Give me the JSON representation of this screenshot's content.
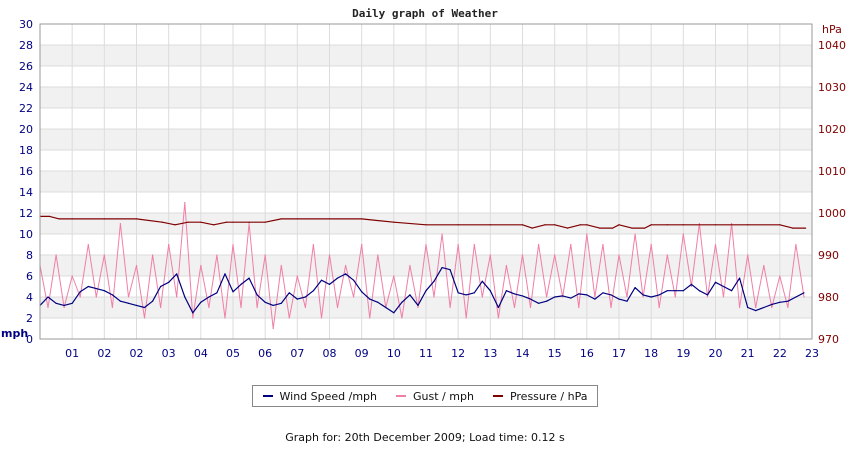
{
  "chart_data": {
    "type": "line",
    "title": "Daily graph of Weather",
    "x_tick_labels": [
      "01",
      "02",
      "02",
      "03",
      "04",
      "05",
      "06",
      "07",
      "08",
      "09",
      "10",
      "11",
      "12",
      "13",
      "14",
      "15",
      "16",
      "17",
      "18",
      "19",
      "20",
      "21",
      "22",
      "23"
    ],
    "x_range_hours": [
      0,
      24
    ],
    "left_axis": {
      "unit": "mph",
      "ylim": [
        0,
        30
      ],
      "ticks": [
        0,
        2,
        4,
        6,
        8,
        10,
        12,
        14,
        16,
        18,
        20,
        22,
        24,
        26,
        28,
        30
      ],
      "color": "#000080"
    },
    "right_axis": {
      "unit": "hPa",
      "ylim": [
        970,
        1045
      ],
      "ticks": [
        970,
        980,
        990,
        1000,
        1010,
        1020,
        1030,
        1040
      ],
      "color": "#800000"
    },
    "grid": true,
    "legend_position": "bottom-center",
    "series": [
      {
        "name": "Wind Speed /mph",
        "axis": "left",
        "color": "#000080",
        "x": [
          0.0,
          0.25,
          0.5,
          0.75,
          1.0,
          1.25,
          1.5,
          1.75,
          2.0,
          2.25,
          2.5,
          2.75,
          3.0,
          3.25,
          3.5,
          3.75,
          4.0,
          4.25,
          4.5,
          4.75,
          5.0,
          5.25,
          5.5,
          5.75,
          6.0,
          6.25,
          6.5,
          6.75,
          7.0,
          7.25,
          7.5,
          7.75,
          8.0,
          8.25,
          8.5,
          8.75,
          9.0,
          9.25,
          9.5,
          9.75,
          10.0,
          10.25,
          10.5,
          10.75,
          11.0,
          11.25,
          11.5,
          11.75,
          12.0,
          12.25,
          12.5,
          12.75,
          13.0,
          13.25,
          13.5,
          13.75,
          14.0,
          14.25,
          14.5,
          14.75,
          15.0,
          15.25,
          15.5,
          15.75,
          16.0,
          16.25,
          16.5,
          16.75,
          17.0,
          17.25,
          17.5,
          17.75,
          18.0,
          18.25,
          18.5,
          18.75,
          19.0,
          19.25,
          19.5,
          19.75,
          20.0,
          20.25,
          20.5,
          20.75,
          21.0,
          21.25,
          21.5,
          21.75,
          22.0,
          22.25,
          22.5,
          22.75,
          23.0,
          23.25,
          23.5,
          23.75
        ],
        "values": [
          3.2,
          4.0,
          3.4,
          3.2,
          3.4,
          4.5,
          5.0,
          4.8,
          4.6,
          4.2,
          3.6,
          3.4,
          3.2,
          3.0,
          3.6,
          5.0,
          5.4,
          6.2,
          4.0,
          2.5,
          3.5,
          4.0,
          4.4,
          6.2,
          4.5,
          5.2,
          5.8,
          4.2,
          3.5,
          3.2,
          3.4,
          4.4,
          3.8,
          4.0,
          4.6,
          5.6,
          5.2,
          5.8,
          6.2,
          5.6,
          4.5,
          3.8,
          3.5,
          3.0,
          2.5,
          3.5,
          4.2,
          3.2,
          4.6,
          5.5,
          6.8,
          6.6,
          4.4,
          4.2,
          4.4,
          5.5,
          4.6,
          3.0,
          4.6,
          4.3,
          4.1,
          3.8,
          3.4,
          3.6,
          4.0,
          4.1,
          3.9,
          4.3,
          4.2,
          3.8,
          4.4,
          4.2,
          3.8,
          3.6,
          4.9,
          4.2,
          4.0,
          4.2,
          4.6,
          4.6,
          4.6,
          5.2,
          4.6,
          4.2,
          5.4,
          5.0,
          4.6,
          5.8,
          3.0,
          2.7,
          3.0,
          3.3,
          3.5,
          3.6,
          4.0,
          4.4
        ]
      },
      {
        "name": "Gust / mph",
        "axis": "left",
        "color": "#f07fa8",
        "x": [
          0.0,
          0.25,
          0.5,
          0.75,
          1.0,
          1.25,
          1.5,
          1.75,
          2.0,
          2.25,
          2.5,
          2.75,
          3.0,
          3.25,
          3.5,
          3.75,
          4.0,
          4.25,
          4.5,
          4.75,
          5.0,
          5.25,
          5.5,
          5.75,
          6.0,
          6.25,
          6.5,
          6.75,
          7.0,
          7.25,
          7.5,
          7.75,
          8.0,
          8.25,
          8.5,
          8.75,
          9.0,
          9.25,
          9.5,
          9.75,
          10.0,
          10.25,
          10.5,
          10.75,
          11.0,
          11.25,
          11.5,
          11.75,
          12.0,
          12.25,
          12.5,
          12.75,
          13.0,
          13.25,
          13.5,
          13.75,
          14.0,
          14.25,
          14.5,
          14.75,
          15.0,
          15.25,
          15.5,
          15.75,
          16.0,
          16.25,
          16.5,
          16.75,
          17.0,
          17.25,
          17.5,
          17.75,
          18.0,
          18.25,
          18.5,
          18.75,
          19.0,
          19.25,
          19.5,
          19.75,
          20.0,
          20.25,
          20.5,
          20.75,
          21.0,
          21.25,
          21.5,
          21.75,
          22.0,
          22.25,
          22.5,
          22.75,
          23.0,
          23.25,
          23.5,
          23.75
        ],
        "values": [
          7,
          3,
          8,
          3,
          6,
          4,
          9,
          4,
          8,
          3,
          11,
          4,
          7,
          2,
          8,
          3,
          9,
          4,
          13,
          2,
          7,
          3,
          8,
          2,
          9,
          3,
          11,
          3,
          8,
          1,
          7,
          2,
          6,
          3,
          9,
          2,
          8,
          3,
          7,
          4,
          9,
          2,
          8,
          3,
          6,
          2,
          7,
          3,
          9,
          4,
          10,
          3,
          9,
          2,
          9,
          4,
          8,
          2,
          7,
          3,
          8,
          3,
          9,
          4,
          8,
          4,
          9,
          3,
          10,
          4,
          9,
          3,
          8,
          4,
          10,
          4,
          9,
          3,
          8,
          4,
          10,
          5,
          11,
          4,
          9,
          4,
          11,
          3,
          8,
          3,
          7,
          3,
          6,
          3,
          9,
          4
        ]
      },
      {
        "name": "Pressure / hPa",
        "axis": "right",
        "color": "#800000",
        "x": [
          0,
          0.3,
          0.6,
          1.0,
          2.0,
          3.0,
          3.8,
          4.2,
          4.6,
          5.0,
          5.4,
          5.8,
          6.0,
          6.5,
          7.0,
          7.5,
          8.0,
          9.0,
          10.0,
          11.0,
          12.0,
          13.0,
          14.0,
          15.0,
          15.3,
          15.7,
          16.0,
          16.4,
          16.8,
          17.0,
          17.4,
          17.8,
          18.0,
          18.4,
          18.8,
          19.0,
          19.5,
          20.0,
          21.0,
          22.0,
          23.0,
          23.4,
          23.8
        ],
        "values": [
          999.2,
          999.2,
          998.6,
          998.6,
          998.6,
          998.6,
          997.8,
          997.2,
          997.8,
          997.8,
          997.2,
          997.8,
          997.8,
          997.8,
          997.8,
          998.6,
          998.6,
          998.6,
          998.6,
          997.8,
          997.2,
          997.2,
          997.2,
          997.2,
          996.4,
          997.2,
          997.2,
          996.4,
          997.2,
          997.2,
          996.4,
          996.4,
          997.2,
          996.4,
          996.4,
          997.2,
          997.2,
          997.2,
          997.2,
          997.2,
          997.2,
          996.4,
          996.4
        ]
      }
    ]
  },
  "legend": {
    "items": [
      {
        "label": "Wind Speed /mph",
        "color": "#000080"
      },
      {
        "label": "Gust / mph",
        "color": "#f07fa8"
      },
      {
        "label": "Pressure / hPa",
        "color": "#800000"
      }
    ]
  },
  "footer": {
    "text": "Graph for: 20th December 2009; Load time: 0.12 s"
  }
}
